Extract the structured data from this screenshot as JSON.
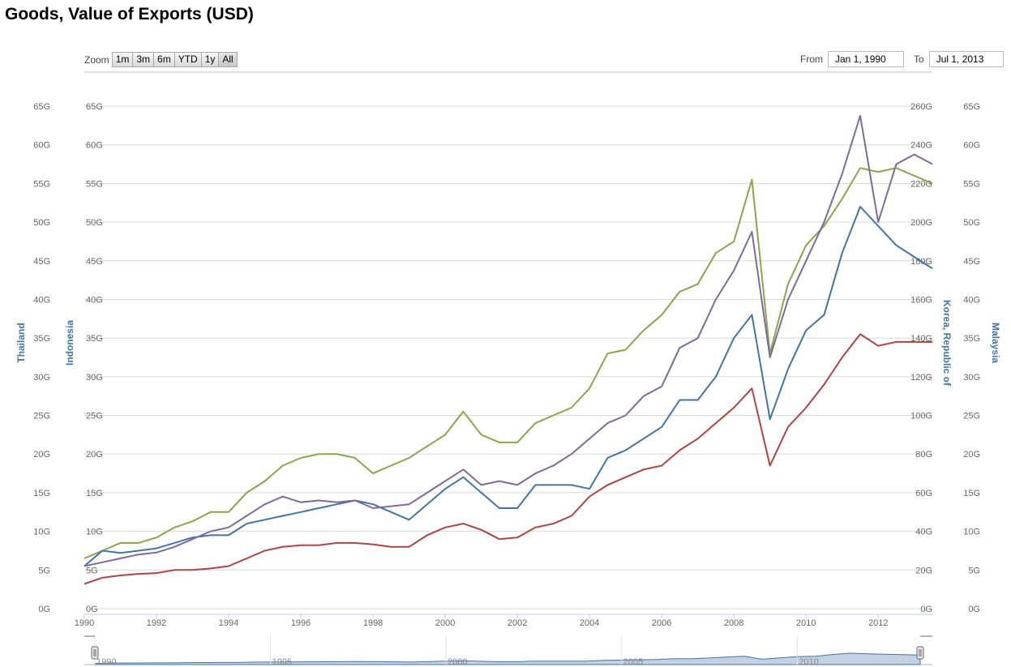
{
  "title": "Goods, Value of Exports (USD)",
  "zoom": {
    "label": "Zoom",
    "buttons": [
      "1m",
      "3m",
      "6m",
      "YTD",
      "1y",
      "All"
    ],
    "active": "All"
  },
  "range": {
    "from_label": "From",
    "from_value": "Jan 1, 1990",
    "to_label": "To",
    "to_value": "Jul 1, 2013"
  },
  "colors": {
    "Thailand": "#89a54e",
    "Indonesia": "#4572a7",
    "Korea": "#80699b",
    "Malaysia": "#aa4643",
    "axis_title": "#4572a7",
    "navigator_fill": "#b4c6dd"
  },
  "chart_data": {
    "type": "line",
    "title": "Goods, Value of Exports (USD)",
    "x_unit": "year",
    "xlim": [
      1990,
      2013.5
    ],
    "x_ticks": [
      "1990",
      "1992",
      "1994",
      "1996",
      "1998",
      "2000",
      "2002",
      "2004",
      "2006",
      "2008",
      "2010",
      "2012"
    ],
    "navigator_ticks": [
      "1990",
      "1995",
      "2000",
      "2005",
      "2010"
    ],
    "grid": true,
    "axes": [
      {
        "id": "thailand",
        "title": "Thailand",
        "side": "left",
        "range": [
          0,
          65
        ],
        "ticks": [
          "0G",
          "5G",
          "10G",
          "15G",
          "20G",
          "25G",
          "30G",
          "35G",
          "40G",
          "45G",
          "50G",
          "55G",
          "60G",
          "65G"
        ]
      },
      {
        "id": "indonesia",
        "title": "Indonesia",
        "side": "left",
        "range": [
          0,
          65
        ],
        "ticks": [
          "0G",
          "5G",
          "10G",
          "15G",
          "20G",
          "25G",
          "30G",
          "35G",
          "40G",
          "45G",
          "50G",
          "55G",
          "60G",
          "65G"
        ]
      },
      {
        "id": "korea",
        "title": "Korea, Republic of",
        "side": "right",
        "range": [
          0,
          260
        ],
        "ticks": [
          "0G",
          "20G",
          "40G",
          "60G",
          "80G",
          "100G",
          "120G",
          "140G",
          "160G",
          "180G",
          "200G",
          "220G",
          "240G",
          "260G"
        ]
      },
      {
        "id": "malaysia",
        "title": "Malaysia",
        "side": "right",
        "range": [
          0,
          65
        ],
        "ticks": [
          "0G",
          "5G",
          "10G",
          "15G",
          "20G",
          "25G",
          "30G",
          "35G",
          "40G",
          "45G",
          "50G",
          "55G",
          "60G",
          "65G"
        ]
      }
    ],
    "series": [
      {
        "name": "Thailand",
        "axis": "thailand",
        "color": "#89a54e",
        "x": [
          1990,
          1990.5,
          1991,
          1991.5,
          1992,
          1992.5,
          1993,
          1993.5,
          1994,
          1994.5,
          1995,
          1995.5,
          1996,
          1996.5,
          1997,
          1997.5,
          1998,
          1998.5,
          1999,
          1999.5,
          2000,
          2000.5,
          2001,
          2001.5,
          2002,
          2002.5,
          2003,
          2003.5,
          2004,
          2004.5,
          2005,
          2005.5,
          2006,
          2006.5,
          2007,
          2007.5,
          2008,
          2008.5,
          2009,
          2009.5,
          2010,
          2010.5,
          2011,
          2011.5,
          2012,
          2012.5,
          2013,
          2013.5
        ],
        "y": [
          6.5,
          7.5,
          8.5,
          8.5,
          9.2,
          10.5,
          11.3,
          12.5,
          12.5,
          15,
          16.5,
          18.5,
          19.5,
          20,
          20,
          19.5,
          17.5,
          18.5,
          19.5,
          21,
          22.5,
          25.5,
          22.5,
          21.5,
          21.5,
          24,
          25,
          26,
          28.5,
          33,
          33.5,
          36,
          38,
          41,
          42,
          46,
          47.5,
          55.5,
          33,
          42,
          47,
          49.5,
          53,
          57,
          56.5,
          57,
          56,
          55
        ]
      },
      {
        "name": "Indonesia",
        "axis": "indonesia",
        "color": "#4572a7",
        "x": [
          1990,
          1990.5,
          1991,
          1991.5,
          1992,
          1992.5,
          1993,
          1993.5,
          1994,
          1994.5,
          1995,
          1995.5,
          1996,
          1996.5,
          1997,
          1997.5,
          1998,
          1998.5,
          1999,
          1999.5,
          2000,
          2000.5,
          2001,
          2001.5,
          2002,
          2002.5,
          2003,
          2003.5,
          2004,
          2004.5,
          2005,
          2005.5,
          2006,
          2006.5,
          2007,
          2007.5,
          2008,
          2008.5,
          2009,
          2009.5,
          2010,
          2010.5,
          2011,
          2011.5,
          2012,
          2012.5,
          2013,
          2013.5
        ],
        "y": [
          5.5,
          7.5,
          7.2,
          7.5,
          7.8,
          8.5,
          9.2,
          9.5,
          9.5,
          11,
          11.5,
          12,
          12.5,
          13,
          13.5,
          14,
          13.5,
          12.5,
          11.5,
          13.5,
          15.5,
          17,
          15,
          13,
          13,
          16,
          16,
          16,
          15.5,
          19.5,
          20.5,
          22,
          23.5,
          27,
          27,
          30,
          35,
          38,
          24.5,
          31,
          36,
          38,
          46,
          52,
          49.5,
          47,
          45.5,
          44
        ]
      },
      {
        "name": "Korea, Republic of",
        "axis": "korea",
        "color": "#80699b",
        "x": [
          1990,
          1990.5,
          1991,
          1991.5,
          1992,
          1992.5,
          1993,
          1993.5,
          1994,
          1994.5,
          1995,
          1995.5,
          1996,
          1996.5,
          1997,
          1997.5,
          1998,
          1998.5,
          1999,
          1999.5,
          2000,
          2000.5,
          2001,
          2001.5,
          2002,
          2002.5,
          2003,
          2003.5,
          2004,
          2004.5,
          2005,
          2005.5,
          2006,
          2006.5,
          2007,
          2007.5,
          2008,
          2008.5,
          2009,
          2009.5,
          2010,
          2010.5,
          2011,
          2011.5,
          2012,
          2012.5,
          2013,
          2013.5
        ],
        "y": [
          22,
          24,
          26,
          28,
          29,
          32,
          36,
          40,
          42,
          48,
          54,
          58,
          55,
          56,
          55,
          56,
          52,
          53,
          54,
          60,
          66,
          72,
          64,
          66,
          64,
          70,
          74,
          80,
          88,
          96,
          100,
          110,
          115,
          135,
          140,
          160,
          175,
          195,
          130,
          160,
          180,
          200,
          225,
          255,
          200,
          230,
          235,
          230
        ]
      },
      {
        "name": "Malaysia",
        "axis": "malaysia",
        "color": "#aa4643",
        "x": [
          1990,
          1990.5,
          1991,
          1991.5,
          1992,
          1992.5,
          1993,
          1993.5,
          1994,
          1994.5,
          1995,
          1995.5,
          1996,
          1996.5,
          1997,
          1997.5,
          1998,
          1998.5,
          1999,
          1999.5,
          2000,
          2000.5,
          2001,
          2001.5,
          2002,
          2002.5,
          2003,
          2003.5,
          2004,
          2004.5,
          2005,
          2005.5,
          2006,
          2006.5,
          2007,
          2007.5,
          2008,
          2008.5,
          2009,
          2009.5,
          2010,
          2010.5,
          2011,
          2011.5,
          2012,
          2012.5,
          2013,
          2013.5
        ],
        "y": [
          3.2,
          4,
          4.3,
          4.5,
          4.6,
          5,
          5,
          5.2,
          5.5,
          6.5,
          7.5,
          8,
          8.2,
          8.2,
          8.5,
          8.5,
          8.3,
          8,
          8,
          9.5,
          10.5,
          11,
          10.2,
          9,
          9.2,
          10.5,
          11,
          12,
          14.5,
          16,
          17,
          18,
          18.5,
          20.5,
          22,
          24,
          26,
          28.5,
          18.5,
          23.5,
          26,
          29,
          32.5,
          35.5,
          34,
          34.5,
          34.5,
          34.5
        ]
      }
    ]
  }
}
